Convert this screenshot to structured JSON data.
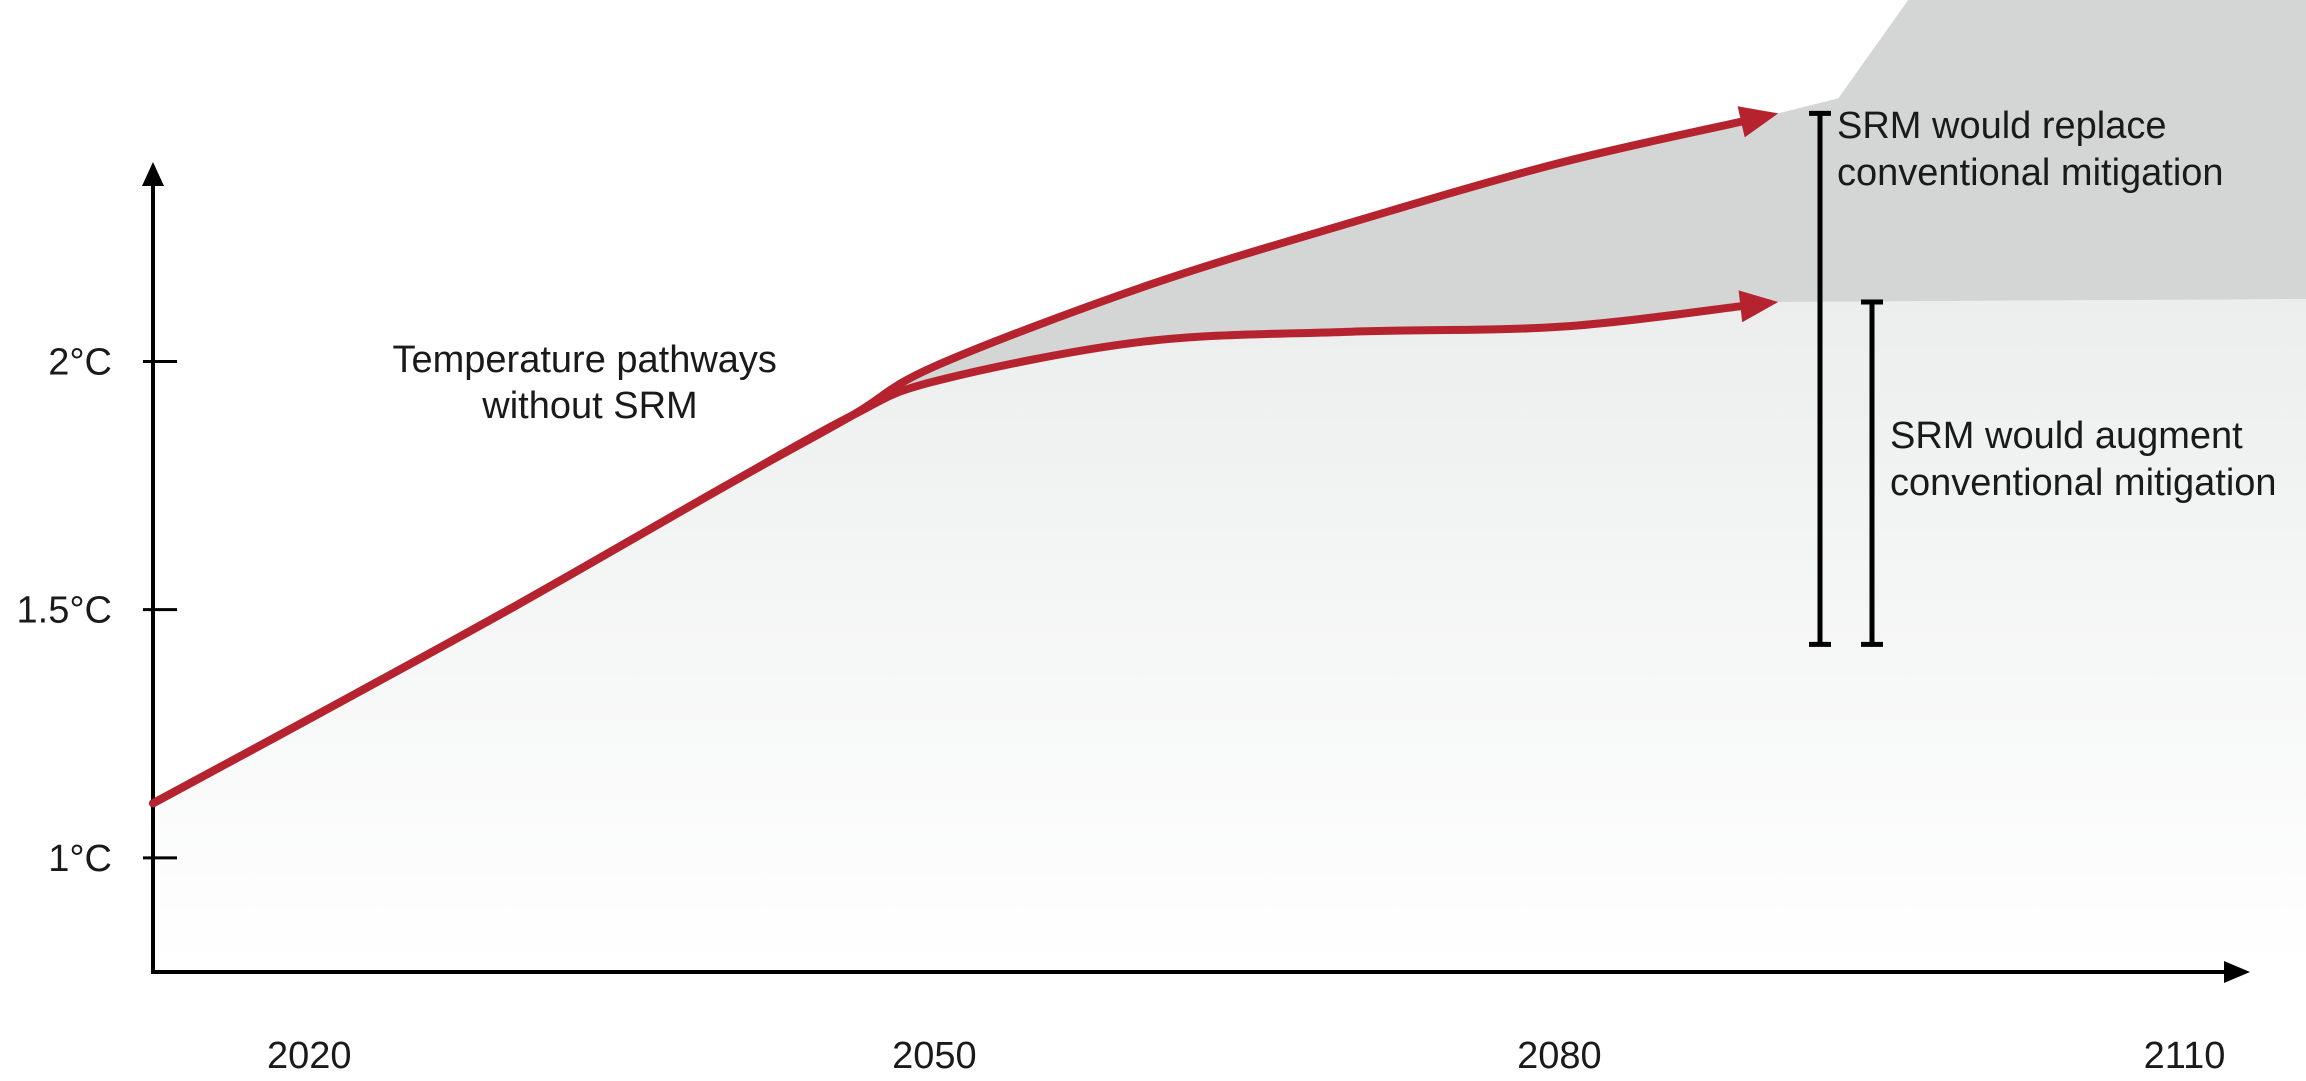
{
  "chart_data": {
    "type": "line",
    "title": "",
    "xlabel": "",
    "ylabel": "",
    "xlim": [
      2012.5,
      2113
    ],
    "ylim": [
      0.77,
      2.4
    ],
    "grid": false,
    "x_ticks": [
      {
        "value": 2020,
        "label": "2020"
      },
      {
        "value": 2050,
        "label": "2050"
      },
      {
        "value": 2080,
        "label": "2080"
      },
      {
        "value": 2110,
        "label": "2110"
      }
    ],
    "y_ticks": [
      {
        "value": 1.0,
        "label": "1°C"
      },
      {
        "value": 1.5,
        "label": "1.5°C"
      },
      {
        "value": 2.0,
        "label": "2°C"
      }
    ],
    "series": [
      {
        "color": "#b5232e",
        "x": [
          2012.5,
          2020,
          2030,
          2040,
          2046,
          2050,
          2060,
          2070,
          2080,
          2090.5
        ],
        "y": [
          1.11,
          1.28,
          1.51,
          1.75,
          1.89,
          1.99,
          2.15,
          2.28,
          2.4,
          2.5
        ]
      },
      {
        "color": "#b5232e",
        "x": [
          2012.5,
          2020,
          2030,
          2040,
          2046,
          2050,
          2060,
          2070,
          2080,
          2090.5
        ],
        "y": [
          1.11,
          1.28,
          1.51,
          1.75,
          1.89,
          1.96,
          2.04,
          2.06,
          2.07,
          2.12
        ]
      }
    ],
    "annotations": [
      {
        "id": "pathways",
        "lines": [
          "Temperature pathways",
          "without SRM"
        ]
      },
      {
        "id": "replace",
        "lines": [
          "SRM would replace",
          "conventional mitigation"
        ],
        "range": [
          1.43,
          2.5
        ]
      },
      {
        "id": "augment",
        "lines": [
          "SRM would augment",
          "conventional mitigation"
        ],
        "range": [
          1.43,
          2.12
        ]
      }
    ],
    "colors": {
      "line": "#b5232e",
      "replace_region": "#d4d5d5",
      "augment_region_top": "#eceeee",
      "augment_region_bottom": "#ffffff",
      "axis": "#000000"
    }
  }
}
